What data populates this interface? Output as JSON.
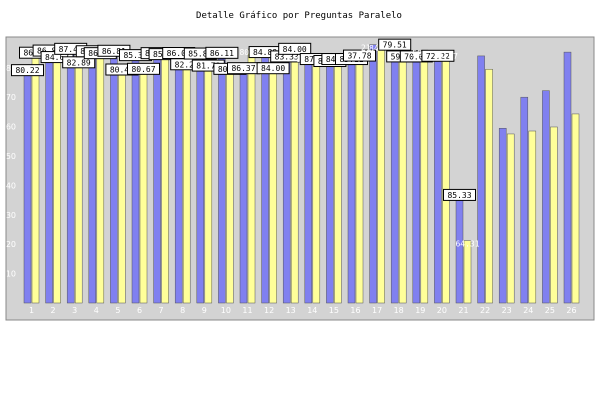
{
  "chart_data": {
    "type": "bar",
    "title": "Detalle Gráfico por Preguntas Paralelo",
    "categories": [
      "1",
      "2",
      "3",
      "4",
      "5",
      "6",
      "7",
      "8",
      "9",
      "10",
      "11",
      "12",
      "13",
      "14",
      "15",
      "16",
      "17",
      "18",
      "19",
      "20",
      "21",
      "22",
      "23",
      "24",
      "25",
      "26"
    ],
    "series": [
      {
        "color": "#8080f0",
        "values": [
          80.22,
          86.88,
          87.47,
          86.65,
          86.81,
          85.33,
          86.0,
          86.05,
          85.87,
          86.11,
          80.89,
          86.37,
          84.89,
          84.0,
          83.33,
          84.0,
          87.88,
          88.89,
          84.89,
          85.11,
          37.78,
          84.04,
          59.44,
          70.0,
          72.22,
          85.33
        ]
      },
      {
        "color": "#ffff99",
        "values": [
          86.15,
          84.67,
          82.89,
          86.0,
          80.44,
          80.67,
          85.67,
          82.22,
          81.78,
          80.67,
          86.37,
          80.88,
          87.47,
          84.0,
          84.0,
          85.18,
          87.8,
          84.89,
          86.0,
          85.11,
          21.23,
          79.51,
          57.5,
          58.5,
          59.87,
          64.31
        ]
      }
    ],
    "ylim": [
      0,
      100
    ],
    "yticks": [
      10,
      20,
      30,
      40,
      50,
      60,
      70,
      80
    ],
    "grid": false,
    "legend": "none",
    "background": "#d3d3d3",
    "data_labels": [
      {
        "text": "80.22",
        "boxed": true
      },
      {
        "text": "86.15",
        "boxed": true
      },
      {
        "text": "86.88",
        "boxed": true
      },
      {
        "text": "84.67",
        "boxed": true
      },
      {
        "text": "87.47",
        "boxed": true
      },
      {
        "text": "82.89",
        "boxed": true
      },
      {
        "text": "86.65",
        "boxed": true
      },
      {
        "text": "86.00",
        "boxed": true
      },
      {
        "text": "86.81",
        "boxed": true
      },
      {
        "text": "80.44",
        "boxed": true
      },
      {
        "text": "85.33",
        "boxed": true
      },
      {
        "text": "80.67",
        "boxed": true
      },
      {
        "text": "86.00",
        "boxed": true
      },
      {
        "text": "85.67",
        "boxed": true
      },
      {
        "text": "86.05",
        "boxed": true
      },
      {
        "text": "82.22",
        "boxed": true
      },
      {
        "text": "85.87",
        "boxed": true
      },
      {
        "text": "81.78",
        "boxed": true
      },
      {
        "text": "86.11",
        "boxed": true
      },
      {
        "text": "80.89",
        "boxed": true
      },
      {
        "text": "86.37",
        "boxed": true
      },
      {
        "text": "80.88",
        "boxed": false
      },
      {
        "text": "84.89",
        "boxed": true
      },
      {
        "text": "84.00",
        "boxed": true
      },
      {
        "text": "83.33",
        "boxed": true
      },
      {
        "text": "84.00",
        "boxed": true
      },
      {
        "text": "85.18",
        "boxed": false
      },
      {
        "text": "87.80",
        "boxed": true
      },
      {
        "text": "88.89",
        "boxed": true
      },
      {
        "text": "84.89",
        "boxed": true
      },
      {
        "text": "85.11",
        "boxed": true
      },
      {
        "text": "37.78",
        "boxed": true
      },
      {
        "text": "21.23",
        "boxed": false
      },
      {
        "text": "84.04",
        "boxed": false
      },
      {
        "text": "79.51",
        "boxed": true
      },
      {
        "text": "59.44",
        "boxed": true
      },
      {
        "text": "70.00",
        "boxed": true
      },
      {
        "text": "58.50",
        "boxed": false
      },
      {
        "text": "72.22",
        "boxed": true
      },
      {
        "text": "59.87",
        "boxed": false
      },
      {
        "text": "85.33",
        "boxed": true
      },
      {
        "text": "64.31",
        "boxed": false
      }
    ]
  }
}
